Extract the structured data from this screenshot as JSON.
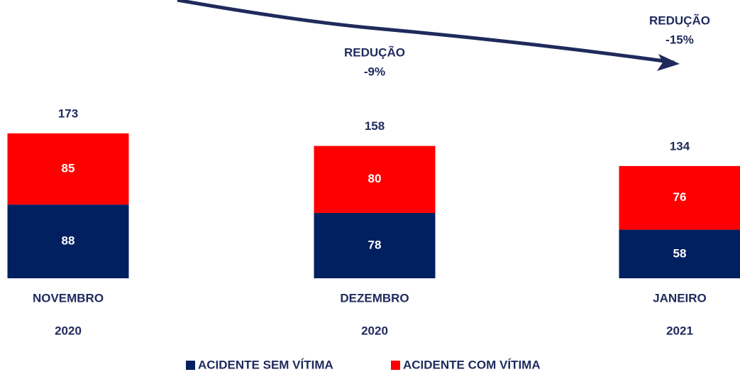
{
  "chart_data": {
    "type": "stacked_bar",
    "categories": [
      [
        "NOVEMBRO",
        "2020"
      ],
      [
        "DEZEMBRO",
        "2020"
      ],
      [
        "JANEIRO",
        "2021"
      ]
    ],
    "series": [
      {
        "name": "ACIDENTE SEM VÍTIMA",
        "color": "#002060",
        "values": [
          88,
          78,
          58
        ]
      },
      {
        "name": "ACIDENTE COM VÍTIMA",
        "color": "#ff0000",
        "values": [
          85,
          80,
          76
        ]
      }
    ],
    "totals": [
      173,
      158,
      134
    ],
    "annotations": [
      [
        "REDUÇÃO",
        "-9%"
      ],
      [
        "REDUÇÃO",
        "-15%"
      ]
    ]
  }
}
